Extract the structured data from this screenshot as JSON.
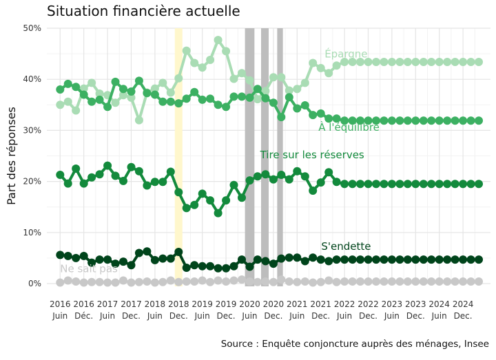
{
  "chart_data": {
    "type": "line",
    "title": "Situation financière actuelle",
    "ylabel": "Part des réponses",
    "xlabel": "",
    "source": "Source : Enquête conjoncture auprès des ménages, Insee",
    "ylim": [
      0,
      50
    ],
    "yticks": [
      "0%",
      "10%",
      "20%",
      "30%",
      "40%",
      "50%"
    ],
    "yticks_values": [
      0,
      10,
      20,
      30,
      40,
      50
    ],
    "grid": true,
    "x": [
      2016.0,
      2016.1667,
      2016.3333,
      2016.5,
      2016.6667,
      2016.8333,
      2017.0,
      2017.1667,
      2017.3333,
      2017.5,
      2017.6667,
      2017.8333,
      2018.0,
      2018.1667,
      2018.3333,
      2018.5,
      2018.6667,
      2018.8333,
      2019.0,
      2019.1667,
      2019.3333,
      2019.5,
      2019.6667,
      2019.8333,
      2020.0,
      2020.1667,
      2020.3333,
      2020.5,
      2020.6667,
      2020.8333,
      2021.0,
      2021.1667,
      2021.3333,
      2021.5,
      2021.6667,
      2021.8333,
      2022.0,
      2022.1667,
      2022.3333,
      2022.5,
      2022.6667,
      2022.8333,
      2023.0,
      2023.1667,
      2023.3333,
      2023.5,
      2023.6667,
      2023.8333,
      2024.0,
      2024.1667,
      2024.3333,
      2024.5,
      2024.6667,
      2024.8333
    ],
    "xticks": [
      {
        "year": "2016",
        "label": "Juin"
      },
      {
        "year": "2016",
        "label": "Déc."
      },
      {
        "year": "2017",
        "label": "Juin"
      },
      {
        "year": "2017",
        "label": "Dec."
      },
      {
        "year": "2018",
        "label": "Juin"
      },
      {
        "year": "2018",
        "label": "Dec."
      },
      {
        "year": "2019",
        "label": "Juin"
      },
      {
        "year": "2019",
        "label": "Dec."
      },
      {
        "year": "2020",
        "label": "Juin"
      },
      {
        "year": "2020",
        "label": "Dec."
      },
      {
        "year": "2021",
        "label": "Juin"
      },
      {
        "year": "2021",
        "label": "Dec."
      },
      {
        "year": "2022",
        "label": "Juin"
      },
      {
        "year": "2022",
        "label": "Dec."
      },
      {
        "year": "2023",
        "label": "Juin"
      },
      {
        "year": "2023",
        "label": "Dec."
      },
      {
        "year": "2024",
        "label": "Juin"
      },
      {
        "year": "2024",
        "label": "Dec."
      }
    ],
    "xticks_values": [
      2016.0,
      2016.5,
      2017.0,
      2017.5,
      2018.0,
      2018.5,
      2019.0,
      2019.5,
      2020.0,
      2020.5,
      2021.0,
      2021.5,
      2022.0,
      2022.5,
      2023.0,
      2023.5,
      2024.0,
      2024.5
    ],
    "bands": [
      {
        "from": 2018.42,
        "to": 2018.58,
        "color": "#fff7cc"
      },
      {
        "from": 2019.9,
        "to": 2020.1,
        "color": "#bdbdbd"
      },
      {
        "from": 2020.24,
        "to": 2020.4,
        "color": "#bdbdbd"
      },
      {
        "from": 2020.58,
        "to": 2020.7,
        "color": "#bdbdbd"
      }
    ],
    "series": [
      {
        "name": "Épargne",
        "color": "#a9dcb4",
        "label_x": 2021.58,
        "label_y": 44.3,
        "values": [
          35,
          35.6,
          33.9,
          38.2,
          39.3,
          37.2,
          36.9,
          35.4,
          36.9,
          36.4,
          32,
          37.4,
          38.2,
          39.3,
          37.4,
          40.2,
          45.6,
          43.2,
          42.3,
          43.8,
          47.7,
          45.5,
          40.1,
          41.2,
          39.8,
          36.1,
          37.7,
          40.4,
          40.4,
          37.8,
          38.1,
          39.3,
          43.2,
          42.2,
          41.2,
          42.7,
          43.4,
          43.4,
          43.4,
          43.4,
          43.4,
          43.4,
          43.4,
          43.4,
          43.4,
          43.4,
          43.4,
          43.4,
          43.4,
          43.4,
          43.4,
          43.4,
          43.4,
          43.4
        ]
      },
      {
        "name": "À l'équilibre",
        "color": "#3cb062",
        "label_x": 2021.45,
        "label_y": 29.9,
        "values": [
          38.0,
          39.1,
          38.5,
          37.0,
          35.6,
          36.0,
          34.6,
          39.5,
          38.1,
          37.6,
          39.7,
          37.3,
          37.0,
          35.6,
          35.6,
          35.3,
          36.2,
          37.5,
          36.0,
          36.2,
          35.0,
          34.6,
          36.6,
          36.6,
          36.4,
          38.1,
          36.3,
          35.4,
          32.6,
          36.5,
          34.3,
          34.9,
          33.0,
          33.3,
          32.3,
          32.3,
          31.9,
          31.9,
          31.9,
          31.9,
          31.9,
          31.9,
          31.9,
          31.9,
          31.9,
          31.9,
          31.9,
          31.9,
          31.9,
          31.9,
          31.9,
          31.9,
          31.9,
          31.9
        ]
      },
      {
        "name": "Tire sur les réserves",
        "color": "#138a3c",
        "label_x": 2020.22,
        "label_y": 24.5,
        "values": [
          21.3,
          19.6,
          22.5,
          19.6,
          20.8,
          21.4,
          23.1,
          21.1,
          20.1,
          22.8,
          22.0,
          19.2,
          19.9,
          19.9,
          21.9,
          17.9,
          14.8,
          15.4,
          17.6,
          16.3,
          13.8,
          16.3,
          19.3,
          16.8,
          20.2,
          21.0,
          21.4,
          20.4,
          21.3,
          20.4,
          22.0,
          21.0,
          18.2,
          19.8,
          21.8,
          19.9,
          19.5,
          19.5,
          19.5,
          19.5,
          19.5,
          19.5,
          19.5,
          19.5,
          19.5,
          19.5,
          19.5,
          19.5,
          19.5,
          19.5,
          19.5,
          19.5,
          19.5,
          19.5
        ]
      },
      {
        "name": "S'endette",
        "color": "#00441b",
        "label_x": 2021.51,
        "label_y": 6.6,
        "values": [
          5.6,
          5.4,
          5.0,
          5.4,
          4.1,
          4.7,
          4.7,
          3.9,
          4.3,
          3.6,
          6.0,
          6.3,
          4.6,
          4.9,
          4.9,
          6.2,
          3.1,
          3.6,
          3.4,
          3.4,
          3.0,
          3.0,
          3.4,
          4.7,
          3.3,
          4.7,
          4.4,
          3.9,
          4.9,
          5.1,
          5.1,
          4.4,
          5.1,
          4.7,
          4.4,
          4.7,
          4.7,
          4.7,
          4.7,
          4.7,
          4.7,
          4.7,
          4.7,
          4.7,
          4.7,
          4.7,
          4.7,
          4.7,
          4.7,
          4.7,
          4.7,
          4.7,
          4.7,
          4.7
        ]
      },
      {
        "name": "Ne sait pas",
        "color": "#c8c8c8",
        "label_x": 2016.0,
        "label_y": 2.2,
        "values": [
          0.2,
          0.6,
          0.4,
          0.2,
          0.3,
          0.3,
          0.2,
          0.2,
          0.6,
          0.2,
          0.3,
          0.4,
          0.2,
          0.3,
          0.6,
          0.3,
          0.4,
          0.4,
          0.6,
          0.3,
          0.6,
          0.4,
          0.6,
          0.8,
          0.4,
          0.3,
          0.4,
          0.3,
          0.8,
          0.4,
          0.3,
          0.4,
          0.2,
          0.3,
          0.6,
          0.3,
          0.4,
          0.4,
          0.4,
          0.4,
          0.4,
          0.4,
          0.4,
          0.4,
          0.4,
          0.4,
          0.4,
          0.4,
          0.4,
          0.4,
          0.4,
          0.4,
          0.4,
          0.4
        ]
      }
    ]
  }
}
